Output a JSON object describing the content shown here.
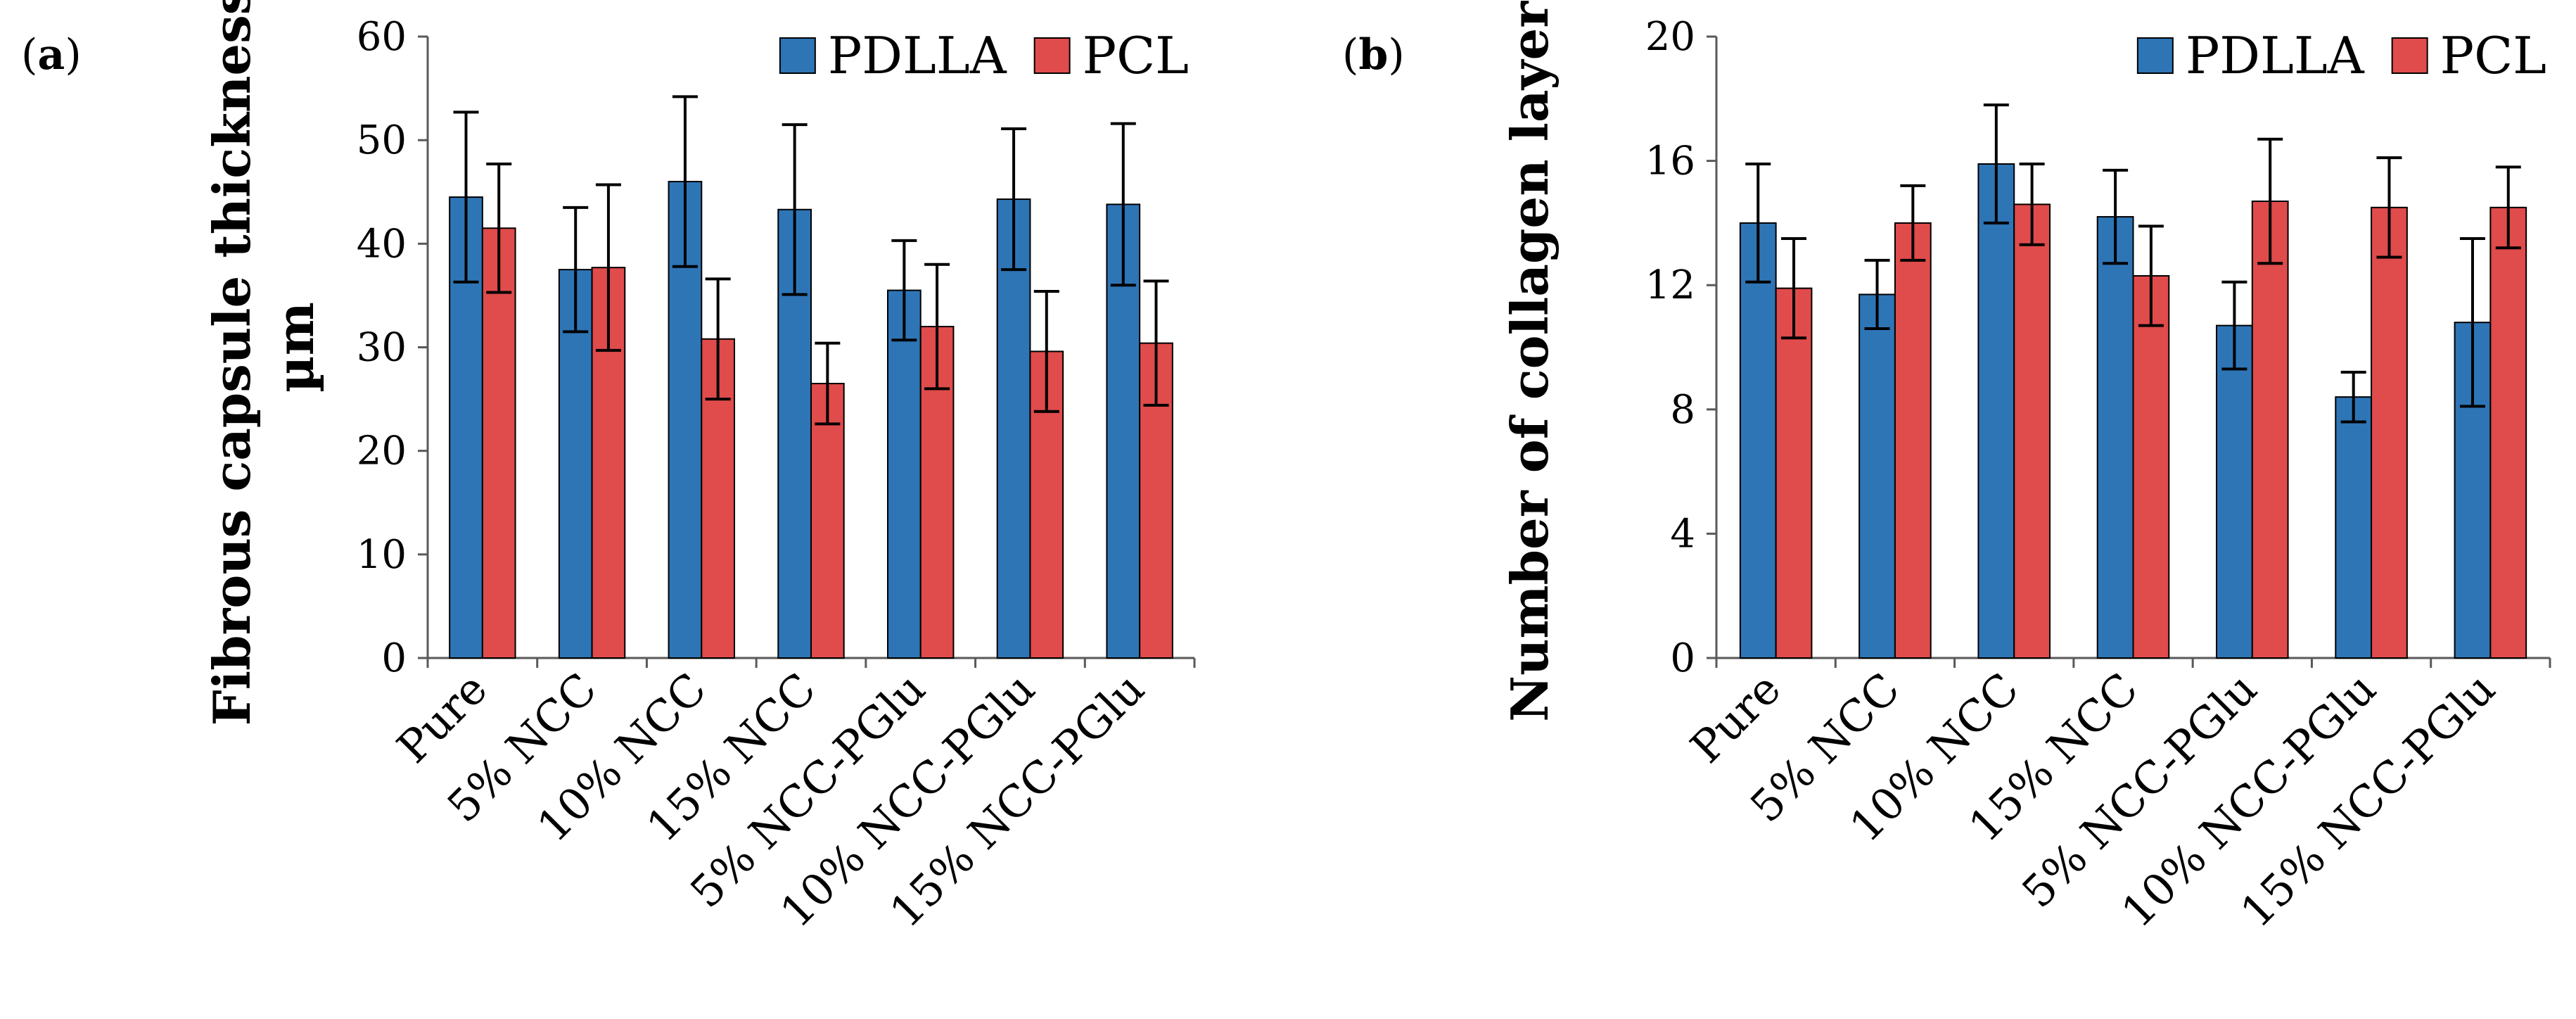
{
  "chart_data": [
    {
      "panel": "a",
      "type": "bar",
      "ylabel": [
        "Fibrous capsule thickness,",
        "µm"
      ],
      "ylim": [
        0,
        60
      ],
      "yticks": [
        0,
        10,
        20,
        30,
        40,
        50,
        60
      ],
      "categories": [
        "Pure",
        "5% NCC",
        "10% NCC",
        "15% NCC",
        "5% NCC-PGlu",
        "10% NCC-PGlu",
        "15% NCC-PGlu"
      ],
      "series": [
        {
          "name": "PDLLA",
          "color": "#2e75b6",
          "values": [
            44.5,
            37.5,
            46.0,
            43.3,
            35.5,
            44.3,
            43.8
          ],
          "errors": [
            8.2,
            6.0,
            8.2,
            8.2,
            4.8,
            6.8,
            7.8
          ]
        },
        {
          "name": "PCL",
          "color": "#e04b4b",
          "values": [
            41.5,
            37.7,
            30.8,
            26.5,
            32.0,
            29.6,
            30.4
          ],
          "errors": [
            6.2,
            8.0,
            5.8,
            3.9,
            6.0,
            5.8,
            6.0
          ]
        }
      ],
      "legend_position": "top-right"
    },
    {
      "panel": "b",
      "type": "bar",
      "ylabel": [
        "Number of collagen layers"
      ],
      "ylim": [
        0,
        20
      ],
      "yticks": [
        0,
        4,
        8,
        12,
        16,
        20
      ],
      "categories": [
        "Pure",
        "5% NCC",
        "10% NCC",
        "15% NCC",
        "5% NCC-PGlu",
        "10% NCC-PGlu",
        "15% NCC-PGlu"
      ],
      "series": [
        {
          "name": "PDLLA",
          "color": "#2e75b6",
          "values": [
            14.0,
            11.7,
            15.9,
            14.2,
            10.7,
            8.4,
            10.8
          ],
          "errors": [
            1.9,
            1.1,
            1.9,
            1.5,
            1.4,
            0.8,
            2.7
          ]
        },
        {
          "name": "PCL",
          "color": "#e04b4b",
          "values": [
            11.9,
            14.0,
            14.6,
            12.3,
            14.7,
            14.5,
            14.5
          ],
          "errors": [
            1.6,
            1.2,
            1.3,
            1.6,
            2.0,
            1.6,
            1.3
          ]
        }
      ],
      "legend_position": "top-right"
    }
  ]
}
